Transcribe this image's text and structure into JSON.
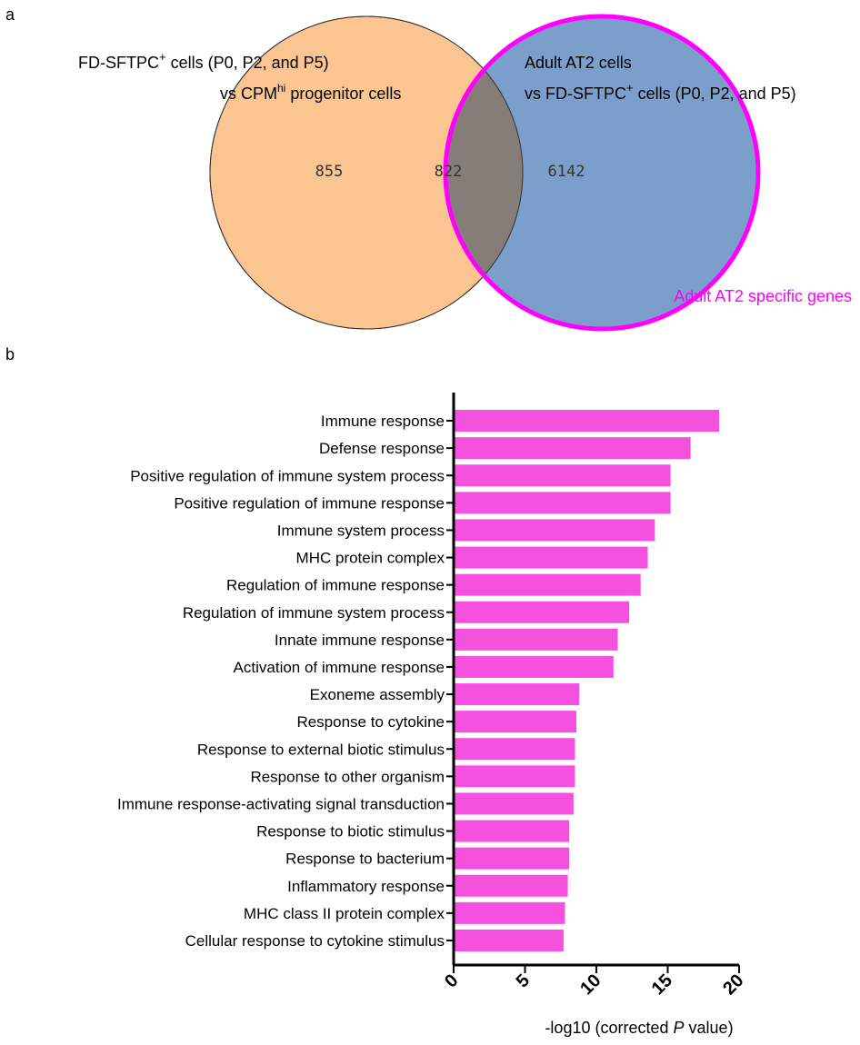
{
  "panel_a": {
    "letter": "a",
    "left_set_line1_main": "FD-SFTPC",
    "left_set_line1_sup": "+",
    "left_set_line1_rest": " cells (P0, P2, and P5)",
    "left_set_line2_main": "vs CPM",
    "left_set_line2_sup": "hi",
    "left_set_line2_rest": " progenitor cells",
    "right_set_line1": "Adult AT2 cells",
    "right_set_line2_main": "vs FD-SFTPC",
    "right_set_line2_sup": "+",
    "right_set_line2_rest": " cells (P0, P2, and P5)",
    "left_only_count": "855",
    "overlap_count": "822",
    "right_only_count": "6142",
    "highlight_label": "Adult AT2 specific genes",
    "colors": {
      "left_fill": "#fac591",
      "right_fill": "#7b9fca",
      "overlap_fill": "#857d78",
      "highlight": "#ff00ff"
    }
  },
  "panel_b": {
    "letter": "b"
  },
  "chart_data": {
    "type": "bar",
    "orientation": "horizontal",
    "categories": [
      "Immune response",
      "Defense response",
      "Positive regulation of immune system process",
      "Positive regulation of immune response",
      "Immune system process",
      "MHC protein complex",
      "Regulation of immune response",
      "Regulation of immune system process",
      "Innate immune response",
      "Activation of immune response",
      "Exoneme assembly",
      "Response to cytokine",
      "Response to external biotic stimulus",
      "Response to other organism",
      "Immune response-activating signal transduction",
      "Response to biotic stimulus",
      "Response to bacterium",
      "Inflammatory response",
      "MHC class II protein complex",
      "Cellular response to cytokine stimulus"
    ],
    "values": [
      18.6,
      16.6,
      15.2,
      15.2,
      14.1,
      13.6,
      13.1,
      12.3,
      11.5,
      11.2,
      8.8,
      8.6,
      8.5,
      8.5,
      8.4,
      8.1,
      8.1,
      8.0,
      7.8,
      7.7
    ],
    "xlabel_prefix": "-log10 (corrected ",
    "xlabel_italic": "P",
    "xlabel_suffix": " value)",
    "xlim": [
      0,
      20
    ],
    "xticks": [
      0,
      5,
      10,
      15,
      20
    ],
    "bar_color": "#f550de",
    "grid": false
  }
}
